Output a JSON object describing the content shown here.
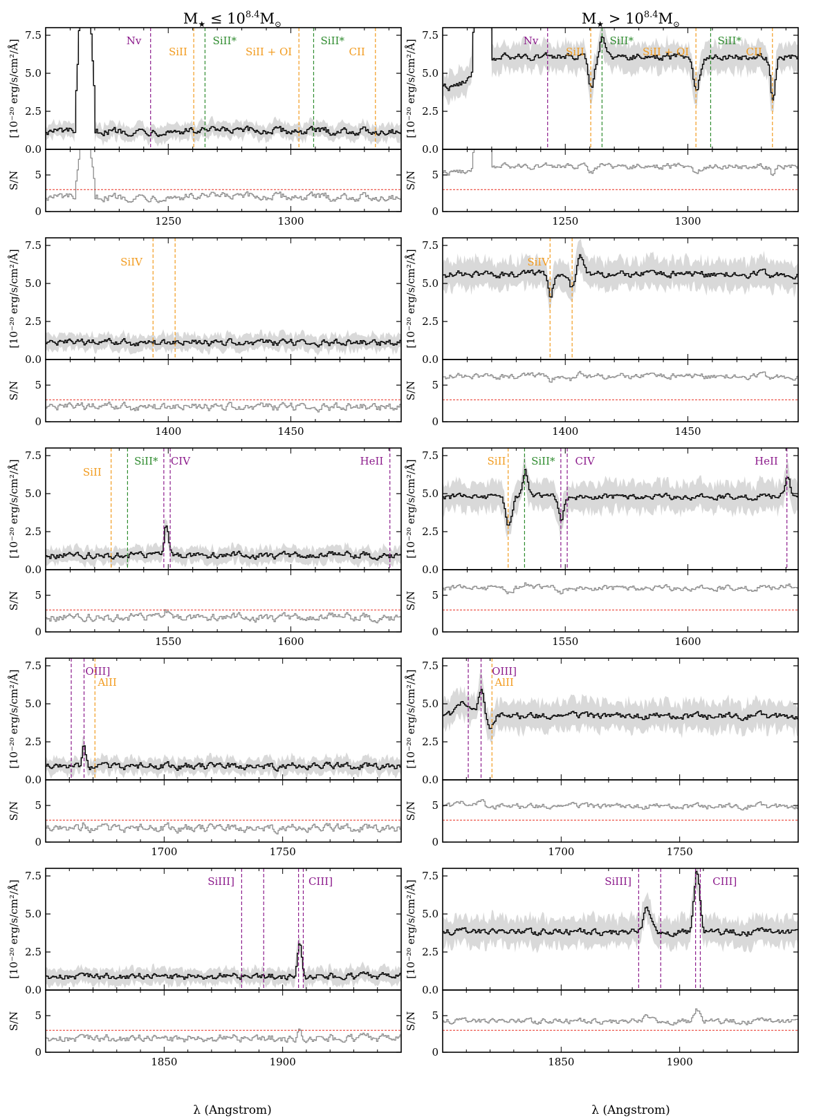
{
  "figure": {
    "column_titles": [
      "M★ ≤ 10^8.4 M⊙",
      "M★ > 10^8.4 M⊙"
    ],
    "flux_ylabel": "[10⁻²⁰ erg/s/cm²/Å]",
    "sn_ylabel": "S/N",
    "xlabel": "λ (Angstrom)"
  },
  "colors": {
    "spectrum": "#000000",
    "error_band": "#d9d9d9",
    "sn_line": "#8c8c8c",
    "sn_threshold": "#e8291c",
    "purple": "#8b1a8b",
    "orange": "#f29b1e",
    "green": "#2e8b2e"
  },
  "chart_data": [
    {
      "type": "line",
      "row": 0,
      "column": "low_mass",
      "xlim": [
        1200,
        1345
      ],
      "xticks": [
        1250,
        1300
      ],
      "flux_ylim": [
        0,
        8.0
      ],
      "flux_yticks": [
        0.0,
        2.5,
        5.0,
        7.5
      ],
      "sn_ylim": [
        0,
        8.5
      ],
      "sn_yticks": [
        0,
        5
      ],
      "sn_threshold": 3,
      "flux_level": 1.2,
      "flux_noise": 0.45,
      "band_halfwidth": 0.5,
      "sn_level": 2.0,
      "sn_noise": 0.7,
      "lya": {
        "center": 1216,
        "peak": 8.0,
        "sn_peak": 8.5
      },
      "features": [
        {
          "x": 1215.6,
          "amp": 7.0,
          "sigma": 1.2
        }
      ],
      "lines": [
        {
          "x": 1242.8,
          "color": "purple",
          "label": "Nv",
          "label_x": 1236,
          "label_row": 0
        },
        {
          "x": 1260.4,
          "color": "orange",
          "label": "SiII",
          "label_x": 1254,
          "label_row": 1
        },
        {
          "x": 1265.0,
          "color": "green",
          "label": "SiII*",
          "label_x": 1273,
          "label_row": 0
        },
        {
          "x": 1303.3,
          "color": "orange",
          "label": "SiII + OI",
          "label_x": 1291,
          "label_row": 1
        },
        {
          "x": 1309.3,
          "color": "green",
          "label": "SiII*",
          "label_x": 1317,
          "label_row": 0
        },
        {
          "x": 1334.5,
          "color": "orange",
          "label": "CII",
          "label_x": 1327,
          "label_row": 1
        }
      ]
    },
    {
      "type": "line",
      "row": 0,
      "column": "high_mass",
      "xlim": [
        1200,
        1345
      ],
      "xticks": [
        1250,
        1300
      ],
      "flux_ylim": [
        0,
        8.0
      ],
      "flux_yticks": [
        0.0,
        2.5,
        5.0,
        7.5
      ],
      "sn_ylim": [
        0,
        8.5
      ],
      "sn_yticks": [
        0,
        5
      ],
      "sn_threshold": 3,
      "flux_level": 6.1,
      "flux_noise": 0.4,
      "band_halfwidth": 0.9,
      "sn_level": 6.2,
      "sn_noise": 0.5,
      "lya": {
        "center": 1216,
        "peak": 8.0,
        "sn_peak": 8.5
      },
      "features": [
        {
          "x": 1203,
          "amp": -2.0,
          "sigma": 8
        },
        {
          "x": 1260.4,
          "amp": -2.0,
          "sigma": 1.2
        },
        {
          "x": 1265.0,
          "amp": 1.5,
          "sigma": 1.0
        },
        {
          "x": 1303.3,
          "amp": -2.2,
          "sigma": 1.3
        },
        {
          "x": 1334.5,
          "amp": -2.8,
          "sigma": 1.0
        }
      ],
      "lines": [
        {
          "x": 1242.8,
          "color": "purple",
          "label": "Nv",
          "label_x": 1236,
          "label_row": 0
        },
        {
          "x": 1260.4,
          "color": "orange",
          "label": "SiII",
          "label_x": 1254,
          "label_row": 1
        },
        {
          "x": 1265.0,
          "color": "green",
          "label": "SiII*",
          "label_x": 1273,
          "label_row": 0
        },
        {
          "x": 1303.3,
          "color": "orange",
          "label": "SiII + OI",
          "label_x": 1291,
          "label_row": 1
        },
        {
          "x": 1309.3,
          "color": "green",
          "label": "SiII*",
          "label_x": 1317,
          "label_row": 0
        },
        {
          "x": 1334.5,
          "color": "orange",
          "label": "CII",
          "label_x": 1327,
          "label_row": 1
        }
      ]
    },
    {
      "type": "line",
      "row": 1,
      "column": "low_mass",
      "xlim": [
        1350,
        1495
      ],
      "xticks": [
        1400,
        1450
      ],
      "flux_ylim": [
        0,
        8.0
      ],
      "flux_yticks": [
        0.0,
        2.5,
        5.0,
        7.5
      ],
      "sn_ylim": [
        0,
        8.5
      ],
      "sn_yticks": [
        0,
        5
      ],
      "sn_threshold": 3,
      "flux_level": 1.1,
      "flux_noise": 0.4,
      "band_halfwidth": 0.5,
      "sn_level": 2.0,
      "sn_noise": 0.7,
      "features": [],
      "lines": [
        {
          "x": 1393.8,
          "color": "orange",
          "label": "SiIV",
          "label_x": 1385,
          "label_row": 1
        },
        {
          "x": 1402.8,
          "color": "orange",
          "label": "",
          "label_x": 1402.8,
          "label_row": 1
        }
      ]
    },
    {
      "type": "line",
      "row": 1,
      "column": "high_mass",
      "xlim": [
        1350,
        1495
      ],
      "xticks": [
        1400,
        1450
      ],
      "flux_ylim": [
        0,
        8.0
      ],
      "flux_yticks": [
        0.0,
        2.5,
        5.0,
        7.5
      ],
      "sn_ylim": [
        0,
        8.5
      ],
      "sn_yticks": [
        0,
        5
      ],
      "sn_threshold": 3,
      "flux_level": 5.6,
      "flux_noise": 0.4,
      "band_halfwidth": 0.9,
      "sn_level": 6.2,
      "sn_noise": 0.5,
      "features": [
        {
          "x": 1393.8,
          "amp": -1.4,
          "sigma": 1.0
        },
        {
          "x": 1402.8,
          "amp": -1.0,
          "sigma": 1.0
        },
        {
          "x": 1406,
          "amp": 1.2,
          "sigma": 1.5
        }
      ],
      "lines": [
        {
          "x": 1393.8,
          "color": "orange",
          "label": "SiIV",
          "label_x": 1389,
          "label_row": 1
        },
        {
          "x": 1402.8,
          "color": "orange",
          "label": "",
          "label_x": 1402.8,
          "label_row": 1
        }
      ]
    },
    {
      "type": "line",
      "row": 2,
      "column": "low_mass",
      "xlim": [
        1500,
        1645
      ],
      "xticks": [
        1550,
        1600
      ],
      "flux_ylim": [
        0,
        8.0
      ],
      "flux_yticks": [
        0.0,
        2.5,
        5.0,
        7.5
      ],
      "sn_ylim": [
        0,
        8.5
      ],
      "sn_yticks": [
        0,
        5
      ],
      "sn_threshold": 3,
      "flux_level": 0.95,
      "flux_noise": 0.4,
      "band_halfwidth": 0.5,
      "sn_level": 2.0,
      "sn_noise": 0.7,
      "features": [
        {
          "x": 1549,
          "amp": 2.0,
          "sigma": 0.8
        }
      ],
      "lines": [
        {
          "x": 1526.7,
          "color": "orange",
          "label": "SiII",
          "label_x": 1519,
          "label_row": 1
        },
        {
          "x": 1533.4,
          "color": "green",
          "label": "SiII*",
          "label_x": 1541,
          "label_row": 0
        },
        {
          "x": 1548.2,
          "color": "purple",
          "label": "CIV",
          "label_x": 1555,
          "label_row": 0
        },
        {
          "x": 1550.8,
          "color": "purple",
          "label": "",
          "label_x": 1550.8,
          "label_row": 0
        },
        {
          "x": 1640.4,
          "color": "purple",
          "label": "HeII",
          "label_x": 1633,
          "label_row": 0
        }
      ]
    },
    {
      "type": "line",
      "row": 2,
      "column": "high_mass",
      "xlim": [
        1500,
        1645
      ],
      "xticks": [
        1550,
        1600
      ],
      "flux_ylim": [
        0,
        8.0
      ],
      "flux_yticks": [
        0.0,
        2.5,
        5.0,
        7.5
      ],
      "sn_ylim": [
        0,
        8.5
      ],
      "sn_yticks": [
        0,
        5
      ],
      "sn_threshold": 3,
      "flux_level": 4.8,
      "flux_noise": 0.35,
      "band_halfwidth": 0.9,
      "sn_level": 6.0,
      "sn_noise": 0.5,
      "features": [
        {
          "x": 1526.7,
          "amp": -2.0,
          "sigma": 1.2
        },
        {
          "x": 1533.4,
          "amp": 1.8,
          "sigma": 1.0
        },
        {
          "x": 1548.2,
          "amp": -1.5,
          "sigma": 1.0
        },
        {
          "x": 1640.4,
          "amp": 1.4,
          "sigma": 1.0
        }
      ],
      "lines": [
        {
          "x": 1526.7,
          "color": "orange",
          "label": "SiII",
          "label_x": 1522,
          "label_row": 0
        },
        {
          "x": 1533.4,
          "color": "green",
          "label": "SiII*",
          "label_x": 1541,
          "label_row": 0
        },
        {
          "x": 1548.2,
          "color": "purple",
          "label": "CIV",
          "label_x": 1558,
          "label_row": 0
        },
        {
          "x": 1550.8,
          "color": "purple",
          "label": "",
          "label_x": 1550.8,
          "label_row": 0
        },
        {
          "x": 1640.4,
          "color": "purple",
          "label": "HeII",
          "label_x": 1632,
          "label_row": 0
        }
      ]
    },
    {
      "type": "line",
      "row": 3,
      "column": "low_mass",
      "xlim": [
        1650,
        1800
      ],
      "xticks": [
        1700,
        1750
      ],
      "flux_ylim": [
        0,
        8.0
      ],
      "flux_yticks": [
        0.0,
        2.5,
        5.0,
        7.5
      ],
      "sn_ylim": [
        0,
        8.5
      ],
      "sn_yticks": [
        0,
        5
      ],
      "sn_threshold": 3,
      "flux_level": 0.9,
      "flux_noise": 0.4,
      "band_halfwidth": 0.5,
      "sn_level": 1.9,
      "sn_noise": 0.7,
      "features": [
        {
          "x": 1666,
          "amp": 1.4,
          "sigma": 0.8
        }
      ],
      "lines": [
        {
          "x": 1660.8,
          "color": "purple",
          "label": "",
          "label_x": 1660.8,
          "label_row": 0
        },
        {
          "x": 1666.2,
          "color": "purple",
          "label": "OIII]",
          "label_x": 1672,
          "label_row": 0
        },
        {
          "x": 1670.8,
          "color": "orange",
          "label": "AlII",
          "label_x": 1676,
          "label_row": 1
        }
      ]
    },
    {
      "type": "line",
      "row": 3,
      "column": "high_mass",
      "xlim": [
        1650,
        1800
      ],
      "xticks": [
        1700,
        1750
      ],
      "flux_ylim": [
        0,
        8.0
      ],
      "flux_yticks": [
        0.0,
        2.5,
        5.0,
        7.5
      ],
      "sn_ylim": [
        0,
        8.5
      ],
      "sn_yticks": [
        0,
        5
      ],
      "sn_threshold": 3,
      "flux_level": 4.2,
      "flux_noise": 0.4,
      "band_halfwidth": 0.9,
      "sn_level": 4.9,
      "sn_noise": 0.5,
      "features": [
        {
          "x": 1659,
          "amp": 0.8,
          "sigma": 3
        },
        {
          "x": 1666,
          "amp": 1.6,
          "sigma": 1.0
        },
        {
          "x": 1670,
          "amp": -1.0,
          "sigma": 1.0
        }
      ],
      "lines": [
        {
          "x": 1660.8,
          "color": "purple",
          "label": "",
          "label_x": 1660.8,
          "label_row": 0
        },
        {
          "x": 1666.2,
          "color": "purple",
          "label": "OIII]",
          "label_x": 1676,
          "label_row": 0
        },
        {
          "x": 1670.8,
          "color": "orange",
          "label": "AlII",
          "label_x": 1676,
          "label_row": 1
        }
      ]
    },
    {
      "type": "line",
      "row": 4,
      "column": "low_mass",
      "xlim": [
        1800,
        1950
      ],
      "xticks": [
        1850,
        1900
      ],
      "flux_ylim": [
        0,
        8.0
      ],
      "flux_yticks": [
        0.0,
        2.5,
        5.0,
        7.5
      ],
      "sn_ylim": [
        0,
        8.5
      ],
      "sn_yticks": [
        0,
        5
      ],
      "sn_threshold": 3,
      "flux_level": 0.9,
      "flux_noise": 0.4,
      "band_halfwidth": 0.5,
      "sn_level": 1.9,
      "sn_noise": 0.7,
      "features": [
        {
          "x": 1907,
          "amp": 2.0,
          "sigma": 1.0
        }
      ],
      "lines": [
        {
          "x": 1882.7,
          "color": "purple",
          "label": "SiIII]",
          "label_x": 1874,
          "label_row": 0
        },
        {
          "x": 1892.0,
          "color": "purple",
          "label": "",
          "label_x": 1892.0,
          "label_row": 0
        },
        {
          "x": 1906.7,
          "color": "purple",
          "label": "CIII]",
          "label_x": 1916,
          "label_row": 0
        },
        {
          "x": 1908.7,
          "color": "purple",
          "label": "",
          "label_x": 1908.7,
          "label_row": 0
        }
      ]
    },
    {
      "type": "line",
      "row": 4,
      "column": "high_mass",
      "xlim": [
        1800,
        1950
      ],
      "xticks": [
        1850,
        1900
      ],
      "flux_ylim": [
        0,
        8.0
      ],
      "flux_yticks": [
        0.0,
        2.5,
        5.0,
        7.5
      ],
      "sn_ylim": [
        0,
        8.5
      ],
      "sn_yticks": [
        0,
        5
      ],
      "sn_threshold": 3,
      "flux_level": 3.8,
      "flux_noise": 0.4,
      "band_halfwidth": 0.9,
      "sn_level": 4.2,
      "sn_noise": 0.5,
      "features": [
        {
          "x": 1886,
          "amp": 1.5,
          "sigma": 1.5
        },
        {
          "x": 1907,
          "amp": 4.0,
          "sigma": 1.2
        }
      ],
      "lines": [
        {
          "x": 1882.7,
          "color": "purple",
          "label": "SiIII]",
          "label_x": 1874,
          "label_row": 0
        },
        {
          "x": 1892.0,
          "color": "purple",
          "label": "",
          "label_x": 1892.0,
          "label_row": 0
        },
        {
          "x": 1906.7,
          "color": "purple",
          "label": "CIII]",
          "label_x": 1919,
          "label_row": 0
        },
        {
          "x": 1908.7,
          "color": "purple",
          "label": "",
          "label_x": 1908.7,
          "label_row": 0
        }
      ]
    }
  ]
}
